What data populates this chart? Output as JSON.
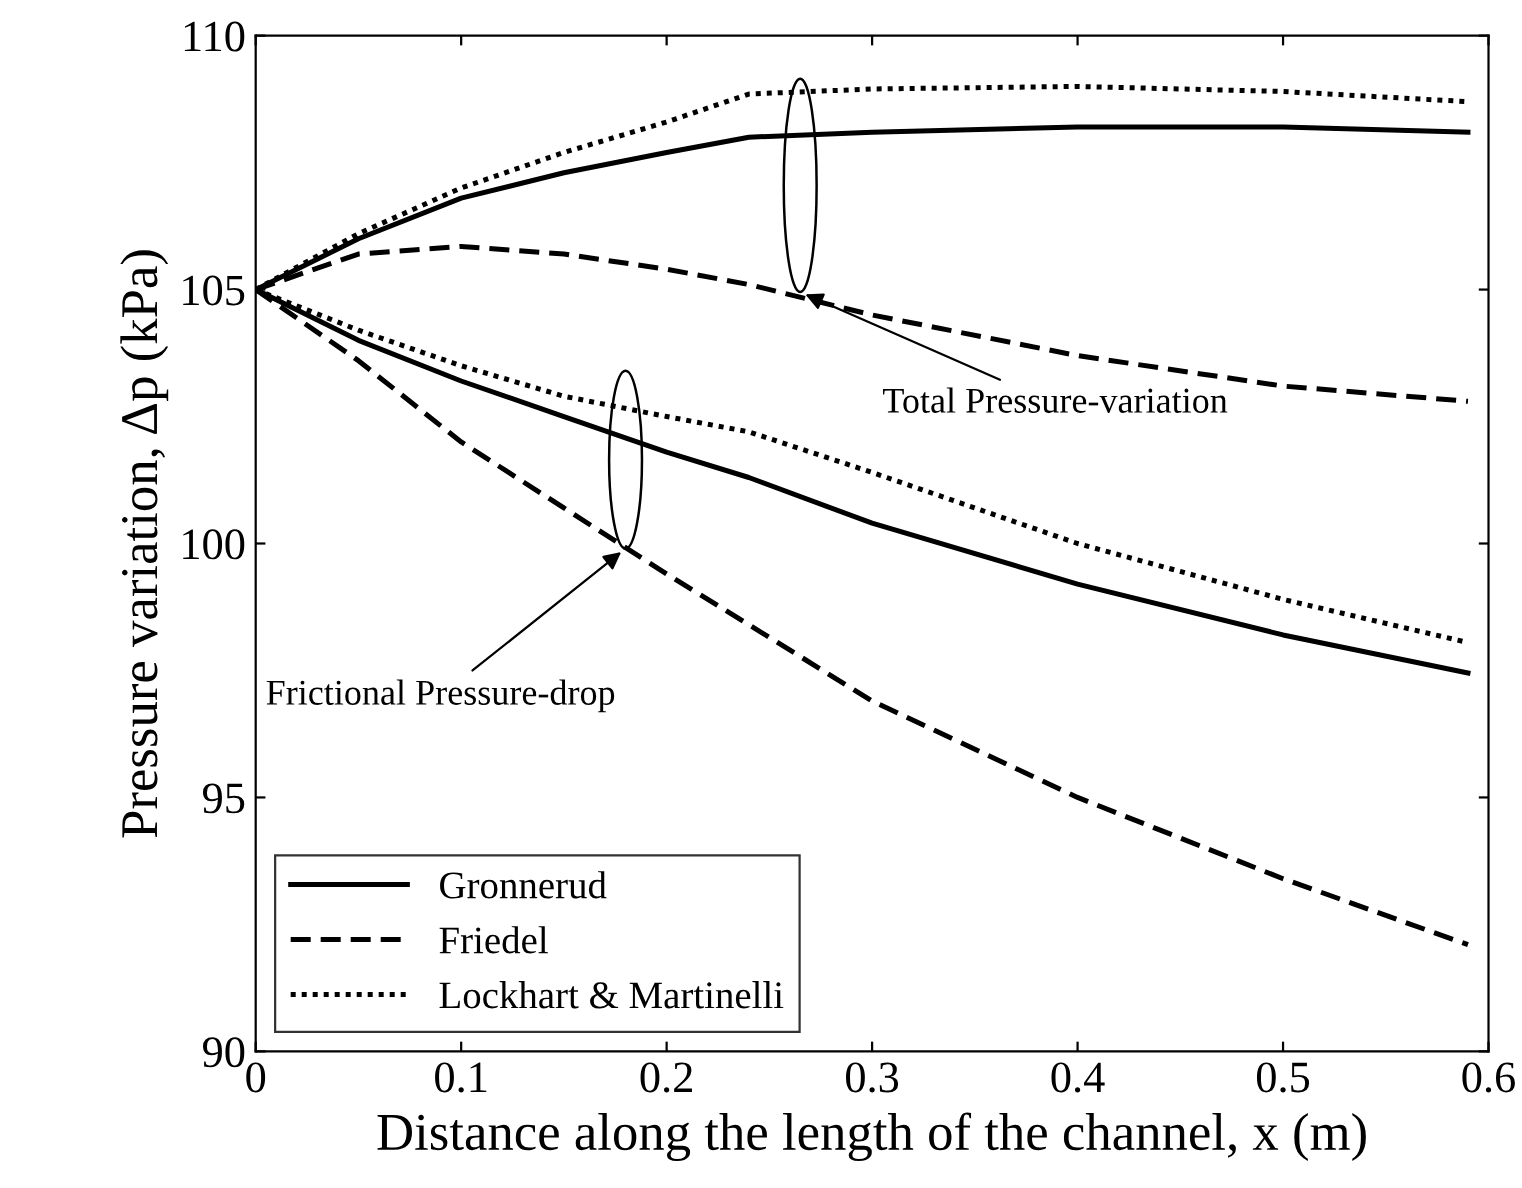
{
  "chart_data": {
    "type": "line",
    "xlabel": "Distance along the length of the channel, x (m)",
    "ylabel": "Pressure variation, Δp (kPa)",
    "x": [
      0,
      0.05,
      0.1,
      0.15,
      0.2,
      0.24,
      0.3,
      0.4,
      0.5,
      0.59
    ],
    "series": [
      {
        "name": "Gronnerud",
        "color": "#000000",
        "line_style": "solid",
        "values": [
          105,
          106.0,
          106.8,
          107.3,
          107.7,
          108.0,
          108.1,
          108.2,
          108.2,
          108.1
        ]
      },
      {
        "name": "Friedel",
        "color": "#000000",
        "line_style": "dashed",
        "values": [
          105,
          105.7,
          105.85,
          105.7,
          105.4,
          105.1,
          104.5,
          103.7,
          103.1,
          102.8
        ]
      },
      {
        "name": "Lockhart & Martinelli",
        "color": "#000000",
        "line_style": "dotted",
        "values": [
          105,
          106.1,
          107.0,
          107.7,
          108.3,
          108.85,
          108.95,
          109.0,
          108.9,
          108.7
        ]
      },
      {
        "color": "#000000",
        "line_style": "solid",
        "values": [
          105,
          104.0,
          103.2,
          102.5,
          101.8,
          101.3,
          100.4,
          99.2,
          98.2,
          97.45
        ]
      },
      {
        "color": "#000000",
        "line_style": "dashed",
        "values": [
          105,
          103.6,
          102.0,
          100.7,
          99.4,
          98.4,
          96.9,
          95.0,
          93.4,
          92.1
        ]
      },
      {
        "color": "#000000",
        "line_style": "dotted",
        "values": [
          105,
          104.2,
          103.5,
          102.9,
          102.5,
          102.2,
          101.4,
          100.0,
          98.9,
          98.05
        ]
      }
    ],
    "annotations": [
      {
        "text": "Total Pressure-variation",
        "x": 0.265,
        "y": 104.95
      },
      {
        "text": "Frictional Pressure-drop",
        "x": 0.18,
        "y": 99.9
      }
    ],
    "xlim": [
      0,
      0.6
    ],
    "ylim": [
      90,
      110
    ],
    "xticks": [
      0,
      0.1,
      0.2,
      0.3,
      0.4,
      0.5,
      0.6
    ],
    "yticks": [
      90,
      95,
      100,
      105,
      110
    ],
    "grid": false,
    "legend": "bottom left",
    "marker": "none"
  }
}
